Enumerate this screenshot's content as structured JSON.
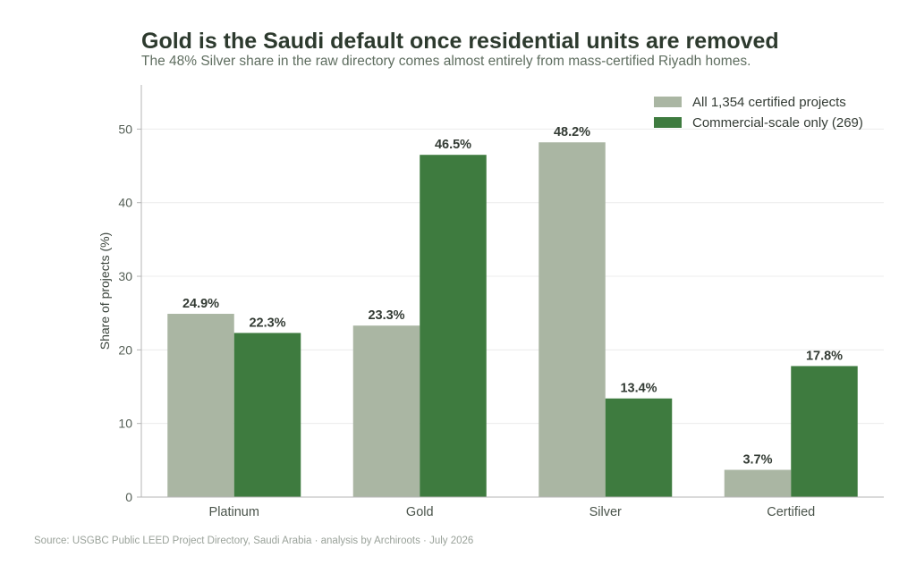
{
  "chart_data": {
    "type": "bar",
    "title": "Gold is the Saudi default once residential units are removed",
    "subtitle": "The 48% Silver share in the raw directory comes almost entirely from mass-certified Riyadh homes.",
    "categories": [
      "Platinum",
      "Gold",
      "Silver",
      "Certified"
    ],
    "series": [
      {
        "name": "All 1,354 certified projects",
        "values": [
          24.9,
          23.3,
          48.2,
          3.7
        ],
        "labels": [
          "24.9%",
          "23.3%",
          "48.2%",
          "3.7%"
        ],
        "color": "#aab6a3"
      },
      {
        "name": "Commercial-scale only (269)",
        "values": [
          22.3,
          46.5,
          13.4,
          17.8
        ],
        "labels": [
          "22.3%",
          "46.5%",
          "13.4%",
          "17.8%"
        ],
        "color": "#3e7b3f"
      }
    ],
    "xlabel": "",
    "ylabel": "Share of projects (%)",
    "ylim": [
      0,
      56
    ],
    "yticks": [
      0,
      10,
      20,
      30,
      40,
      50
    ],
    "grid": true,
    "legend": "top-right"
  },
  "source": "Source: USGBC Public LEED Project Directory, Saudi Arabia · analysis by Archiroots · July 2026"
}
